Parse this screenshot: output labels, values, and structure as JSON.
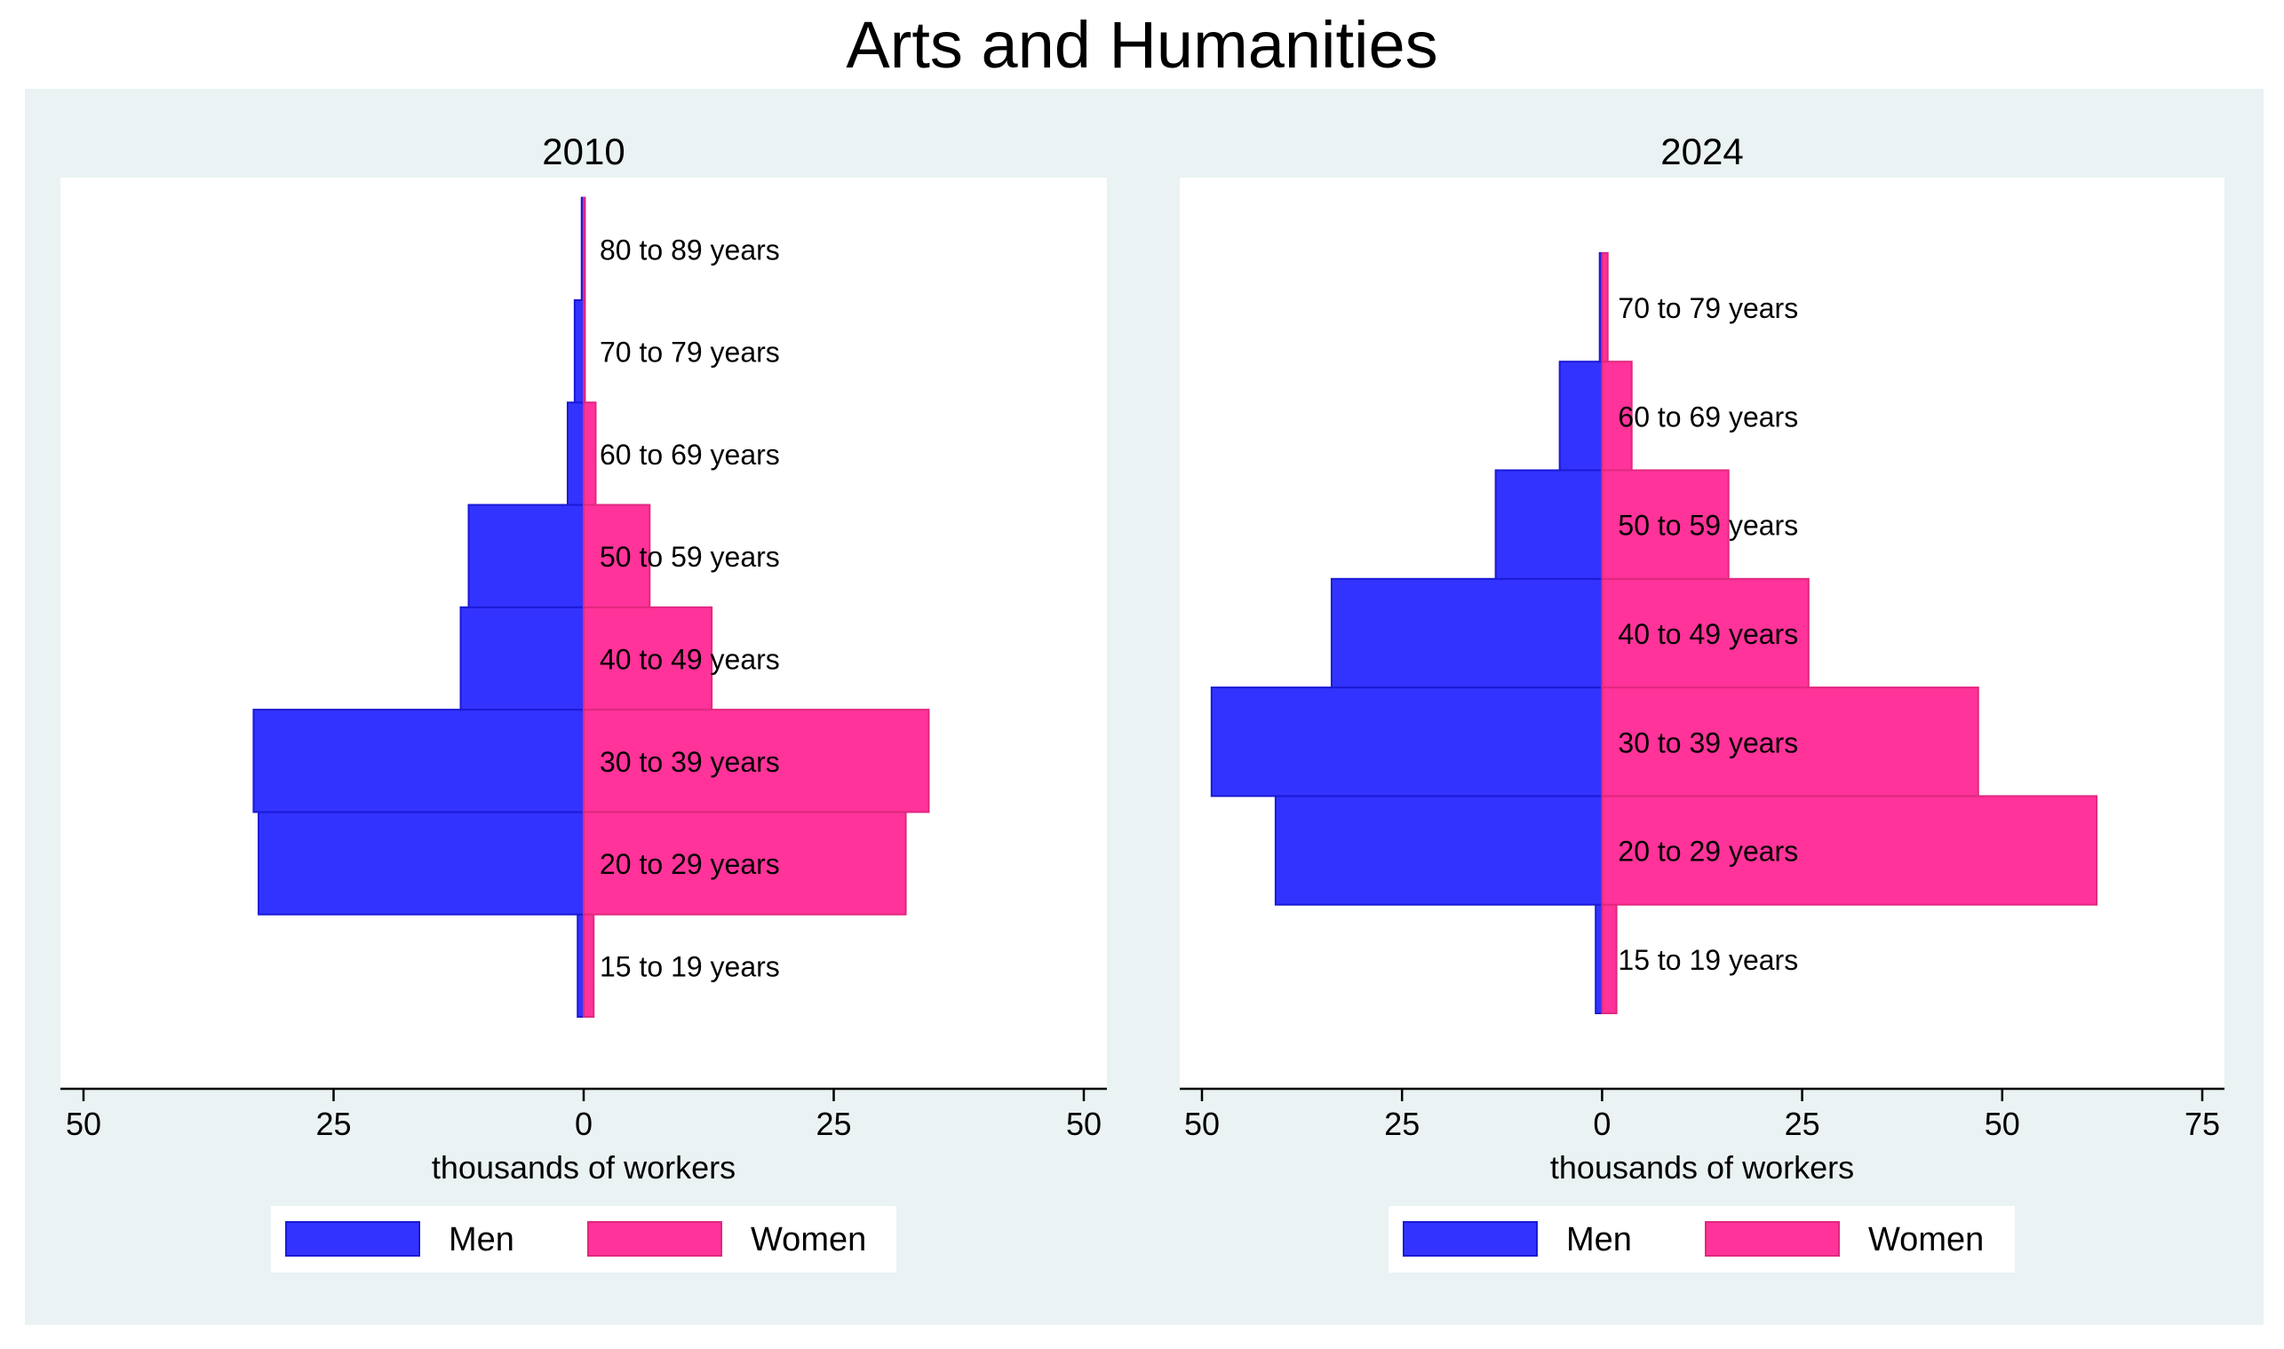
{
  "page": {
    "title": "Arts and Humanities"
  },
  "colors": {
    "men": "#3333ff",
    "women": "#ff3399",
    "panel_bg": "#eaf2f3",
    "plot_bg": "#ffffff"
  },
  "chart_data": [
    {
      "type": "bar",
      "orientation": "horizontal",
      "layout": "population-pyramid",
      "title": "2010",
      "xlabel": "thousands of workers",
      "xlim": [
        -50,
        50
      ],
      "xticks": [
        -50,
        -25,
        0,
        25,
        50
      ],
      "xtick_labels": [
        "50",
        "25",
        "0",
        "25",
        "50"
      ],
      "categories": [
        "15 to 19 years",
        "20 to 29 years",
        "30 to 39 years",
        "40 to 49 years",
        "50 to 59 years",
        "60 to 69 years",
        "70 to 79 years",
        "80 to 89 years"
      ],
      "series": [
        {
          "name": "Men",
          "values": [
            0.6,
            32.5,
            33,
            12.3,
            11.5,
            1.6,
            0.9,
            0.2
          ]
        },
        {
          "name": "Women",
          "values": [
            1,
            32.2,
            34.5,
            12.8,
            6.6,
            1.2,
            0.1,
            0.1
          ]
        }
      ],
      "legend": [
        "Men",
        "Women"
      ],
      "legend_position": "bottom"
    },
    {
      "type": "bar",
      "orientation": "horizontal",
      "layout": "population-pyramid",
      "title": "2024",
      "xlabel": "thousands of workers",
      "xlim": [
        -50,
        75
      ],
      "xticks": [
        -50,
        -25,
        0,
        25,
        50,
        75
      ],
      "xtick_labels": [
        "50",
        "25",
        "0",
        "25",
        "50",
        "75"
      ],
      "categories": [
        "15 to 19 years",
        "20 to 29 years",
        "30 to 39 years",
        "40 to 49 years",
        "50 to 59 years",
        "60 to 69 years",
        "70 to 79 years"
      ],
      "series": [
        {
          "name": "Men",
          "values": [
            0.8,
            40.8,
            48.8,
            33.8,
            13.3,
            5.3,
            0.3
          ]
        },
        {
          "name": "Women",
          "values": [
            1.8,
            61.8,
            47,
            25.8,
            15.8,
            3.7,
            0.7
          ]
        }
      ],
      "legend": [
        "Men",
        "Women"
      ],
      "legend_position": "bottom"
    }
  ]
}
